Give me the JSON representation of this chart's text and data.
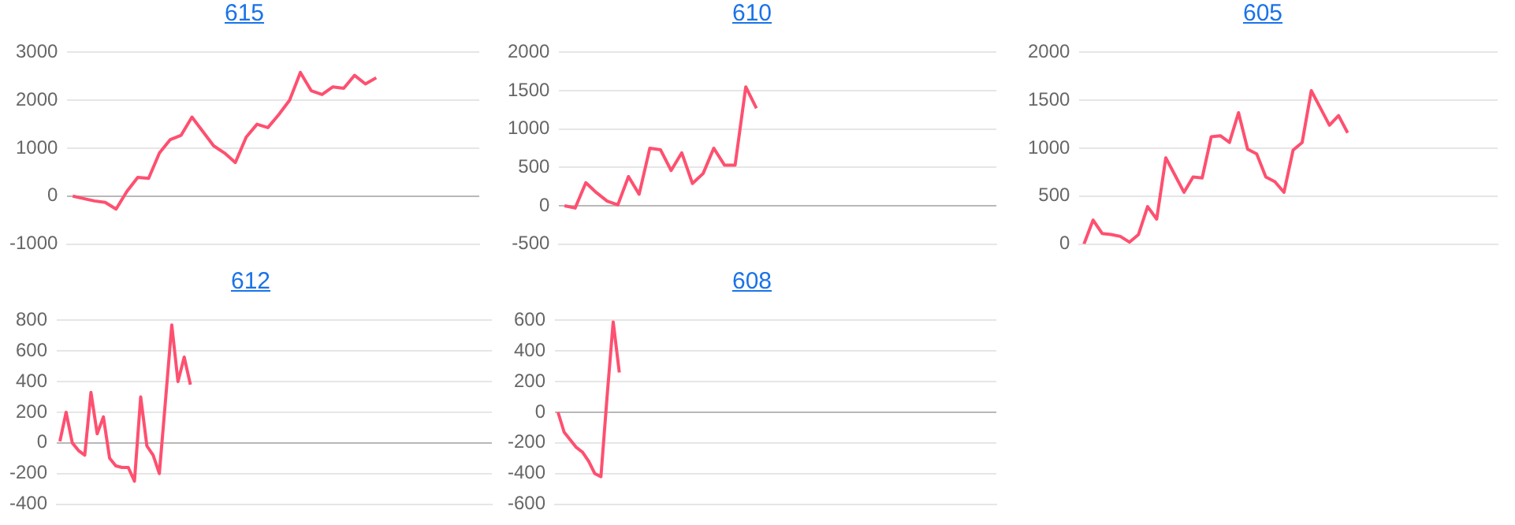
{
  "chart_data": [
    {
      "type": "line",
      "title": "615",
      "grid": "y",
      "tick_labels": "y",
      "marker": "none",
      "ylim": [
        -1000,
        3000
      ],
      "yticks": [
        -1000,
        0,
        1000,
        2000,
        3000
      ],
      "categories": [
        null,
        null,
        null,
        null,
        null,
        null,
        null,
        null,
        null,
        null,
        null,
        null,
        null,
        null,
        null,
        null,
        null,
        null,
        null,
        null,
        null,
        null,
        null,
        null,
        null,
        null,
        null,
        null,
        null,
        null,
        null,
        null,
        null,
        null,
        null,
        null,
        null,
        null
      ],
      "series": [
        {
          "color": "#fe5070",
          "values": [
            0,
            -50,
            -100,
            -130,
            -270,
            100,
            390,
            370,
            900,
            1180,
            1270,
            1650,
            1350,
            1050,
            900,
            700,
            1230,
            1500,
            1430,
            1700,
            2000,
            2580,
            2200,
            2120,
            2280,
            2250,
            2520,
            2340,
            2470,
            null,
            null,
            null,
            null,
            null,
            null,
            null,
            null,
            null
          ]
        }
      ]
    },
    {
      "type": "line",
      "title": "610",
      "grid": "y",
      "tick_labels": "y",
      "marker": "none",
      "ylim": [
        -500,
        2000
      ],
      "yticks": [
        -500,
        0,
        500,
        1000,
        1500,
        2000
      ],
      "categories": [
        null,
        null,
        null,
        null,
        null,
        null,
        null,
        null,
        null,
        null,
        null,
        null,
        null,
        null,
        null,
        null,
        null,
        null,
        null,
        null,
        null,
        null,
        null,
        null,
        null,
        null,
        null,
        null,
        null,
        null,
        null,
        null,
        null,
        null,
        null,
        null,
        null,
        null,
        null,
        null,
        null
      ],
      "series": [
        {
          "color": "#fe5070",
          "values": [
            0,
            -30,
            300,
            170,
            60,
            10,
            380,
            150,
            750,
            730,
            460,
            690,
            290,
            420,
            750,
            530,
            530,
            1550,
            1270,
            null,
            null,
            null,
            null,
            null,
            null,
            null,
            null,
            null,
            null,
            null,
            null,
            null,
            null,
            null,
            null,
            null,
            null,
            null,
            null,
            null,
            null
          ]
        }
      ]
    },
    {
      "type": "line",
      "title": "605",
      "grid": "y",
      "tick_labels": "y",
      "marker": "none",
      "ylim": [
        0,
        2000
      ],
      "yticks": [
        0,
        500,
        1000,
        1500,
        2000
      ],
      "categories": [
        null,
        null,
        null,
        null,
        null,
        null,
        null,
        null,
        null,
        null,
        null,
        null,
        null,
        null,
        null,
        null,
        null,
        null,
        null,
        null,
        null,
        null,
        null,
        null,
        null,
        null,
        null,
        null,
        null,
        null,
        null,
        null,
        null,
        null,
        null,
        null,
        null,
        null,
        null,
        null,
        null,
        null,
        null,
        null,
        null,
        null
      ],
      "series": [
        {
          "color": "#fe5070",
          "values": [
            0,
            250,
            110,
            100,
            80,
            20,
            100,
            390,
            260,
            900,
            720,
            540,
            700,
            690,
            1120,
            1130,
            1060,
            1370,
            990,
            940,
            700,
            650,
            540,
            980,
            1060,
            1600,
            1420,
            1240,
            1340,
            1160,
            null,
            null,
            null,
            null,
            null,
            null,
            null,
            null,
            null,
            null,
            null,
            null,
            null,
            null,
            null,
            null
          ]
        }
      ]
    },
    {
      "type": "line",
      "title": "612",
      "grid": "y",
      "tick_labels": "y",
      "marker": "none",
      "ylim": [
        -400,
        800
      ],
      "yticks": [
        -400,
        -200,
        0,
        200,
        400,
        600,
        800
      ],
      "categories": [
        null,
        null,
        null,
        null,
        null,
        null,
        null,
        null,
        null,
        null,
        null,
        null,
        null,
        null,
        null,
        null,
        null,
        null,
        null,
        null,
        null,
        null,
        null,
        null,
        null,
        null,
        null,
        null,
        null,
        null,
        null,
        null,
        null,
        null,
        null,
        null,
        null,
        null,
        null,
        null,
        null,
        null,
        null,
        null,
        null,
        null,
        null,
        null,
        null,
        null,
        null,
        null,
        null,
        null,
        null,
        null,
        null,
        null,
        null,
        null,
        null,
        null,
        null,
        null,
        null,
        null,
        null,
        null,
        null,
        null
      ],
      "series": [
        {
          "color": "#fe5070",
          "values": [
            10,
            200,
            0,
            -50,
            -80,
            330,
            60,
            170,
            -100,
            -150,
            -160,
            -160,
            -250,
            300,
            -20,
            -80,
            -200,
            280,
            770,
            400,
            560,
            380,
            null,
            null,
            null,
            null,
            null,
            null,
            null,
            null,
            null,
            null,
            null,
            null,
            null,
            null,
            null,
            null,
            null,
            null,
            null,
            null,
            null,
            null,
            null,
            null,
            null,
            null,
            null,
            null,
            null,
            null,
            null,
            null,
            null,
            null,
            null,
            null,
            null,
            null,
            null,
            null,
            null,
            null,
            null,
            null,
            null,
            null,
            null,
            null
          ]
        }
      ]
    },
    {
      "type": "line",
      "title": "608",
      "grid": "y",
      "tick_labels": "y",
      "marker": "none",
      "ylim": [
        -600,
        600
      ],
      "yticks": [
        -600,
        -400,
        -200,
        0,
        200,
        400,
        600
      ],
      "categories": [
        null,
        null,
        null,
        null,
        null,
        null,
        null,
        null,
        null,
        null,
        null,
        null,
        null,
        null,
        null,
        null,
        null,
        null,
        null,
        null,
        null,
        null,
        null,
        null,
        null,
        null,
        null,
        null,
        null,
        null,
        null,
        null,
        null,
        null,
        null,
        null,
        null,
        null,
        null,
        null,
        null,
        null,
        null,
        null,
        null,
        null,
        null,
        null,
        null,
        null,
        null,
        null,
        null,
        null,
        null,
        null,
        null,
        null,
        null,
        null,
        null,
        null,
        null,
        null,
        null,
        null,
        null,
        null,
        null,
        null,
        null,
        null
      ],
      "series": [
        {
          "color": "#fe5070",
          "values": [
            0,
            -130,
            -180,
            -230,
            -260,
            -320,
            -400,
            -420,
            100,
            590,
            260,
            null,
            null,
            null,
            null,
            null,
            null,
            null,
            null,
            null,
            null,
            null,
            null,
            null,
            null,
            null,
            null,
            null,
            null,
            null,
            null,
            null,
            null,
            null,
            null,
            null,
            null,
            null,
            null,
            null,
            null,
            null,
            null,
            null,
            null,
            null,
            null,
            null,
            null,
            null,
            null,
            null,
            null,
            null,
            null,
            null,
            null,
            null,
            null,
            null,
            null,
            null,
            null,
            null,
            null,
            null,
            null,
            null,
            null,
            null,
            null,
            null
          ]
        }
      ]
    }
  ]
}
